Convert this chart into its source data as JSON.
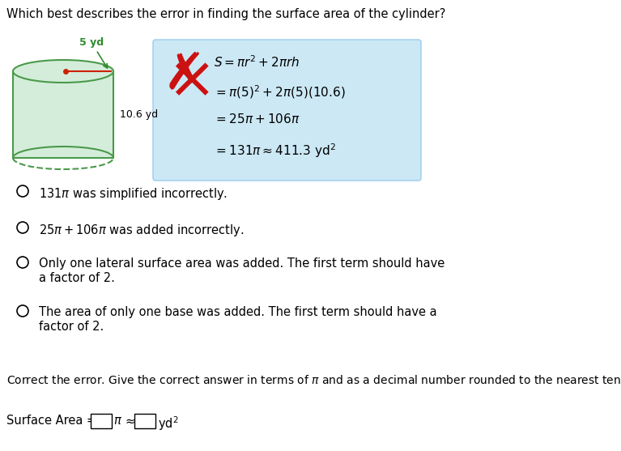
{
  "title": "Which best describes the error in finding the surface area of the cylinder?",
  "title_fontsize": 10.5,
  "bg_color": "#ffffff",
  "cylinder_color_face": "#d4edda",
  "cylinder_color_edge": "#4a9a4a",
  "radius_label": "5 yd",
  "height_label": "10.6 yd",
  "radius_label_color": "#2e8b2e",
  "box_bg": "#cce8f5",
  "box_border": "#99ccee",
  "formula_line1": "$S = \\pi r^2 + 2\\pi rh$",
  "formula_line2": "$= \\pi(5)^2 + 2\\pi(5)(10.6)$",
  "formula_line3": "$= 25\\pi + 106\\pi$",
  "formula_line4": "$= 131\\pi \\approx 411.3 \\ \\mathrm{yd}^2$",
  "option1": "$131\\pi$ was simplified incorrectly.",
  "option2": "$25\\pi + 106\\pi$ was added incorrectly.",
  "option3a": "Only one lateral surface area was added. The first term should have",
  "option3b": "a factor of 2.",
  "option4a": "The area of only one base was added. The first term should have a",
  "option4b": "factor of 2.",
  "footer": "Correct the error. Give the correct answer in terms of $\\pi$ and as a decimal number rounded to the nearest tenth.",
  "sa_label": "Surface Area = ",
  "pi_sym": "$\\pi$",
  "approx_sym": "$\\approx$",
  "yd2": "$\\mathrm{yd}^2$"
}
